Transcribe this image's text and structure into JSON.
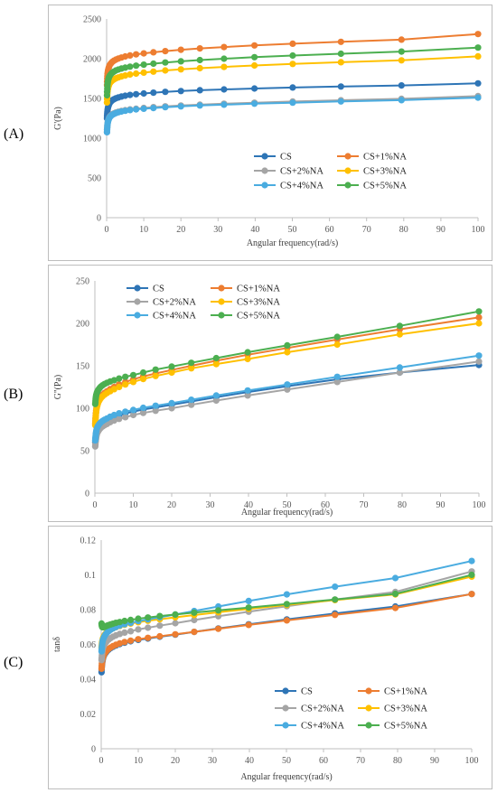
{
  "chart_data": [
    {
      "panel": "(A)",
      "type": "line",
      "xlabel": "Angular frequency(rad/s)",
      "ylabel": "G'(Pa)",
      "xlim": [
        0,
        100
      ],
      "ylim": [
        0,
        2500
      ],
      "xticks": [
        0,
        10,
        20,
        30,
        40,
        50,
        60,
        70,
        80,
        90,
        100
      ],
      "yticks": [
        0,
        500,
        1000,
        1500,
        2000,
        2500
      ],
      "legend_position": "lower-right",
      "x": [
        0.1,
        0.13,
        0.16,
        0.2,
        0.25,
        0.32,
        0.4,
        0.5,
        0.63,
        0.79,
        1.0,
        1.26,
        1.58,
        2.0,
        2.51,
        3.16,
        3.98,
        5.01,
        6.31,
        7.94,
        10.0,
        12.6,
        15.8,
        20.0,
        25.1,
        31.6,
        39.8,
        50.1,
        63.1,
        79.4,
        100
      ],
      "series": [
        {
          "name": "CS",
          "color": "#2E75B6",
          "values": [
            1251,
            1280,
            1305,
            1330,
            1352,
            1372,
            1391,
            1408,
            1424,
            1439,
            1453,
            1466,
            1479,
            1491,
            1502,
            1513,
            1524,
            1534,
            1544,
            1553,
            1563,
            1573,
            1583,
            1593,
            1603,
            1614,
            1625,
            1637,
            1650,
            1664,
            1690
          ]
        },
        {
          "name": "CS+1%NA",
          "color": "#ED7D31",
          "values": [
            1670,
            1712,
            1748,
            1780,
            1809,
            1835,
            1858,
            1879,
            1898,
            1916,
            1932,
            1947,
            1962,
            1976,
            1989,
            2002,
            2015,
            2028,
            2041,
            2054,
            2067,
            2081,
            2096,
            2112,
            2129,
            2147,
            2167,
            2189,
            2213,
            2240,
            2310
          ]
        },
        {
          "name": "CS+2%NA",
          "color": "#A5A5A5",
          "values": [
            1080,
            1110,
            1136,
            1160,
            1182,
            1202,
            1220,
            1237,
            1252,
            1266,
            1279,
            1291,
            1302,
            1313,
            1323,
            1333,
            1343,
            1352,
            1362,
            1371,
            1381,
            1391,
            1401,
            1411,
            1422,
            1434,
            1447,
            1461,
            1477,
            1495,
            1530
          ]
        },
        {
          "name": "CS+3%NA",
          "color": "#FFC000",
          "values": [
            1450,
            1494,
            1530,
            1561,
            1588,
            1612,
            1633,
            1652,
            1670,
            1686,
            1701,
            1715,
            1728,
            1741,
            1753,
            1765,
            1777,
            1789,
            1801,
            1813,
            1825,
            1838,
            1852,
            1866,
            1881,
            1897,
            1915,
            1934,
            1956,
            1980,
            2030
          ]
        },
        {
          "name": "CS+4%NA",
          "color": "#4AACE0",
          "values": [
            1075,
            1105,
            1131,
            1155,
            1177,
            1196,
            1214,
            1230,
            1245,
            1259,
            1272,
            1284,
            1295,
            1306,
            1316,
            1326,
            1335,
            1344,
            1353,
            1362,
            1371,
            1380,
            1390,
            1400,
            1411,
            1422,
            1434,
            1447,
            1462,
            1478,
            1510
          ]
        },
        {
          "name": "CS+5%NA",
          "color": "#4CAF50",
          "values": [
            1540,
            1584,
            1621,
            1652,
            1680,
            1705,
            1727,
            1747,
            1765,
            1782,
            1797,
            1812,
            1826,
            1839,
            1852,
            1864,
            1876,
            1888,
            1900,
            1912,
            1925,
            1938,
            1952,
            1967,
            1983,
            2000,
            2019,
            2040,
            2063,
            2090,
            2140
          ]
        }
      ]
    },
    {
      "panel": "(B)",
      "type": "line",
      "xlabel": "Angular frequency(rad/s)",
      "ylabel": "G''(Pa)",
      "xlim": [
        0,
        100
      ],
      "ylim": [
        0,
        250
      ],
      "xticks": [
        0,
        10,
        20,
        30,
        40,
        50,
        60,
        70,
        80,
        90,
        100
      ],
      "yticks": [
        0,
        50,
        100,
        150,
        200,
        250
      ],
      "legend_position": "top-left",
      "x": [
        0.1,
        0.13,
        0.16,
        0.2,
        0.25,
        0.32,
        0.4,
        0.5,
        0.63,
        0.79,
        1.0,
        1.26,
        1.58,
        2.0,
        2.51,
        3.16,
        3.98,
        5.01,
        6.31,
        7.94,
        10.0,
        12.6,
        15.8,
        20.0,
        25.1,
        31.6,
        39.8,
        50.1,
        63.1,
        79.4,
        100
      ],
      "series": [
        {
          "name": "CS",
          "color": "#2E75B6",
          "values": [
            60,
            62,
            64,
            66,
            68,
            70,
            72,
            74,
            75.5,
            77,
            78.5,
            80,
            81.5,
            83,
            84.5,
            86,
            88,
            90,
            92,
            94,
            96,
            98.5,
            101,
            104,
            108,
            113,
            119,
            126,
            134,
            142,
            151
          ]
        },
        {
          "name": "CS+1%NA",
          "color": "#ED7D31",
          "values": [
            82,
            85,
            88,
            91,
            94,
            97,
            100,
            102.5,
            105,
            107.5,
            110,
            112,
            114,
            116,
            118,
            120,
            122.5,
            125,
            128,
            131,
            134,
            137.5,
            141,
            145,
            150,
            156,
            163,
            171,
            181,
            193,
            207
          ]
        },
        {
          "name": "CS+2%NA",
          "color": "#A5A5A5",
          "values": [
            55,
            57,
            59,
            61,
            63,
            65,
            67,
            69,
            71,
            72.5,
            74,
            75.5,
            77,
            78.5,
            80,
            81.5,
            83.5,
            85.5,
            87.5,
            89.5,
            92,
            94.5,
            97,
            100,
            104,
            109,
            115,
            122,
            131,
            142,
            155
          ]
        },
        {
          "name": "CS+3%NA",
          "color": "#FFC000",
          "values": [
            80,
            83,
            86,
            89,
            92,
            95,
            98,
            100.5,
            103,
            105.5,
            108,
            110,
            112,
            114,
            116,
            118,
            120,
            122.5,
            125,
            128,
            131,
            134.5,
            138,
            142,
            147,
            152,
            158,
            166,
            175,
            187,
            200
          ]
        },
        {
          "name": "CS+4%NA",
          "color": "#4AACE0",
          "values": [
            62,
            64,
            66,
            68,
            70,
            72,
            74,
            76,
            77.5,
            79,
            80.5,
            82,
            83.5,
            85,
            86.5,
            88,
            90,
            92,
            94,
            96,
            98,
            100.5,
            103,
            106,
            110,
            115,
            121,
            128,
            137,
            148,
            162
          ]
        },
        {
          "name": "CS+5%NA",
          "color": "#4CAF50",
          "values": [
            105,
            107,
            109,
            111,
            113,
            115,
            116.5,
            118,
            119.5,
            121,
            122.5,
            124,
            125.5,
            127,
            128.5,
            130,
            131.5,
            133,
            135,
            137,
            139,
            142,
            145.5,
            149,
            153.5,
            159,
            166,
            174,
            184,
            197,
            214
          ]
        }
      ]
    },
    {
      "panel": "(C)",
      "type": "line",
      "xlabel": "Angular frequency(rad/s)",
      "ylabel": "tanδ",
      "xlim": [
        0,
        100
      ],
      "ylim": [
        0,
        0.12
      ],
      "xticks": [
        0,
        10,
        20,
        30,
        40,
        50,
        60,
        70,
        80,
        90,
        100
      ],
      "yticks": [
        0,
        0.02,
        0.04,
        0.06,
        0.08,
        0.1,
        0.12
      ],
      "legend_position": "lower-right",
      "x": [
        0.1,
        0.13,
        0.16,
        0.2,
        0.25,
        0.32,
        0.4,
        0.5,
        0.63,
        0.79,
        1.0,
        1.26,
        1.58,
        2.0,
        2.51,
        3.16,
        3.98,
        5.01,
        6.31,
        7.94,
        10.0,
        12.6,
        15.8,
        20.0,
        25.1,
        31.6,
        39.8,
        50.1,
        63.1,
        79.4,
        100
      ],
      "series": [
        {
          "name": "CS",
          "color": "#2E75B6",
          "values": [
            0.044,
            0.0455,
            0.047,
            0.048,
            0.049,
            0.05,
            0.051,
            0.052,
            0.053,
            0.0538,
            0.0546,
            0.0554,
            0.0562,
            0.057,
            0.0578,
            0.0586,
            0.0594,
            0.0602,
            0.061,
            0.0618,
            0.0626,
            0.0634,
            0.0644,
            0.0656,
            0.0672,
            0.0692,
            0.0716,
            0.0744,
            0.0778,
            0.0818,
            0.089
          ]
        },
        {
          "name": "CS+1%NA",
          "color": "#ED7D31",
          "values": [
            0.046,
            0.047,
            0.048,
            0.049,
            0.05,
            0.051,
            0.0518,
            0.0526,
            0.0534,
            0.0542,
            0.055,
            0.0558,
            0.0566,
            0.0574,
            0.0582,
            0.059,
            0.0598,
            0.0606,
            0.0614,
            0.0622,
            0.063,
            0.0638,
            0.0647,
            0.0658,
            0.0672,
            0.069,
            0.0712,
            0.0738,
            0.077,
            0.081,
            0.089
          ]
        },
        {
          "name": "CS+2%NA",
          "color": "#A5A5A5",
          "values": [
            0.051,
            0.052,
            0.053,
            0.054,
            0.055,
            0.056,
            0.057,
            0.058,
            0.0588,
            0.0596,
            0.0604,
            0.0612,
            0.062,
            0.0628,
            0.0636,
            0.0644,
            0.0652,
            0.066,
            0.0668,
            0.0676,
            0.0686,
            0.0696,
            0.0708,
            0.0722,
            0.074,
            0.0762,
            0.0788,
            0.082,
            0.0858,
            0.0902,
            0.102
          ]
        },
        {
          "name": "CS+3%NA",
          "color": "#FFC000",
          "values": [
            0.058,
            0.0588,
            0.0596,
            0.0604,
            0.0612,
            0.062,
            0.0628,
            0.0636,
            0.0643,
            0.065,
            0.0657,
            0.0664,
            0.0671,
            0.0678,
            0.0685,
            0.0692,
            0.0699,
            0.0706,
            0.0713,
            0.072,
            0.0728,
            0.0736,
            0.0745,
            0.0756,
            0.0769,
            0.0785,
            0.0804,
            0.0827,
            0.0855,
            0.0888,
            0.099
          ]
        },
        {
          "name": "CS+4%NA",
          "color": "#4AACE0",
          "values": [
            0.056,
            0.057,
            0.058,
            0.059,
            0.06,
            0.061,
            0.062,
            0.0628,
            0.0636,
            0.0644,
            0.0652,
            0.066,
            0.0668,
            0.0676,
            0.0684,
            0.0692,
            0.07,
            0.0708,
            0.0716,
            0.0724,
            0.0734,
            0.0744,
            0.0756,
            0.0772,
            0.0792,
            0.0818,
            0.085,
            0.0888,
            0.0932,
            0.0982,
            0.108
          ]
        },
        {
          "name": "CS+5%NA",
          "color": "#4CAF50",
          "values": [
            0.072,
            0.0715,
            0.071,
            0.0706,
            0.0702,
            0.07,
            0.0699,
            0.0699,
            0.07,
            0.0701,
            0.0703,
            0.0705,
            0.0708,
            0.0711,
            0.0715,
            0.0719,
            0.0724,
            0.0729,
            0.0735,
            0.0741,
            0.0748,
            0.0755,
            0.0763,
            0.0772,
            0.0783,
            0.0796,
            0.0812,
            0.0832,
            0.0858,
            0.0891,
            0.1
          ]
        }
      ]
    }
  ]
}
